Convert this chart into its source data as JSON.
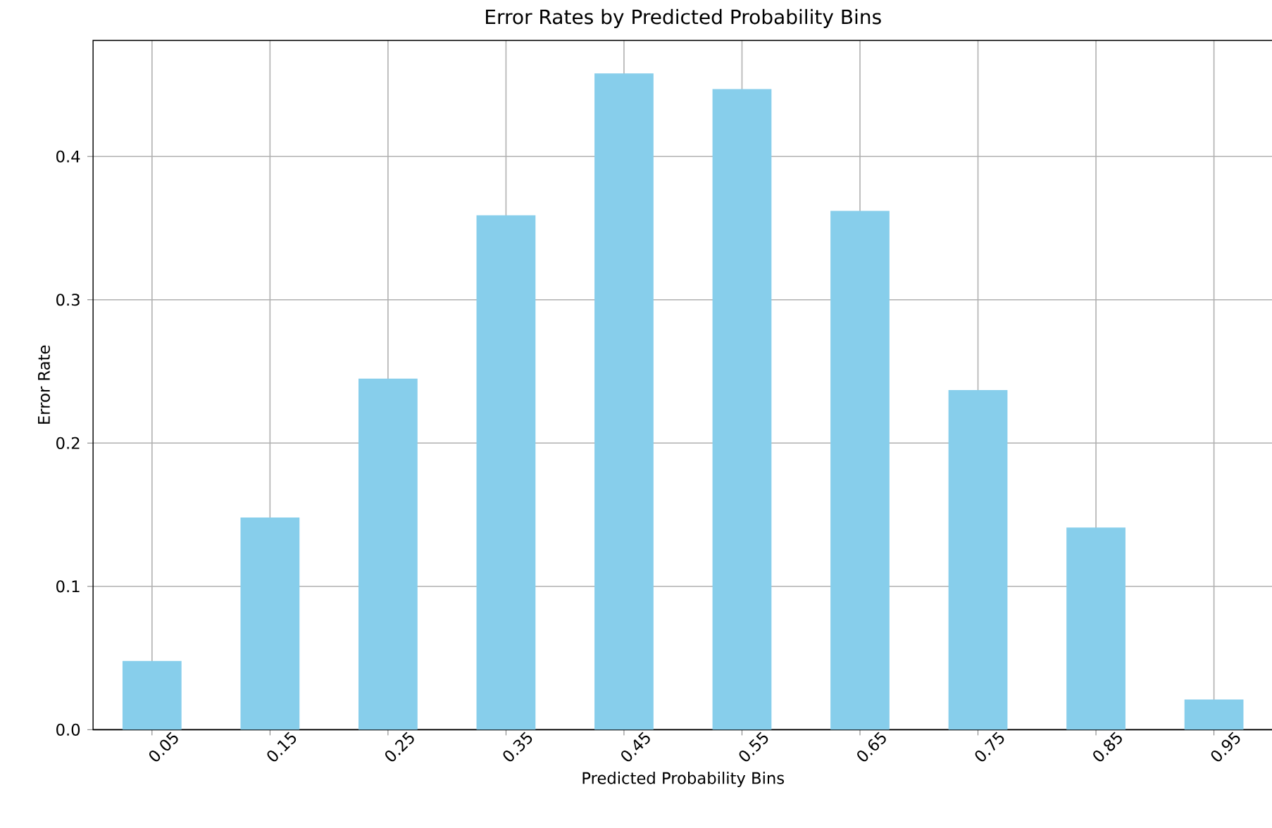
{
  "chart_data": {
    "type": "bar",
    "title": "Error Rates by Predicted Probability Bins",
    "xlabel": "Predicted Probability Bins",
    "ylabel": "Error Rate",
    "categories": [
      "0.05",
      "0.15",
      "0.25",
      "0.35",
      "0.45",
      "0.55",
      "0.65",
      "0.75",
      "0.85",
      "0.95"
    ],
    "values": [
      0.048,
      0.148,
      0.245,
      0.359,
      0.458,
      0.447,
      0.362,
      0.237,
      0.141,
      0.021
    ],
    "color": "#87ceeb",
    "ylim": [
      0,
      0.481
    ],
    "yticks": [
      {
        "value": 0,
        "label": "0.0"
      },
      0.1,
      0.2,
      0.3,
      0.4
    ],
    "grid": true
  }
}
